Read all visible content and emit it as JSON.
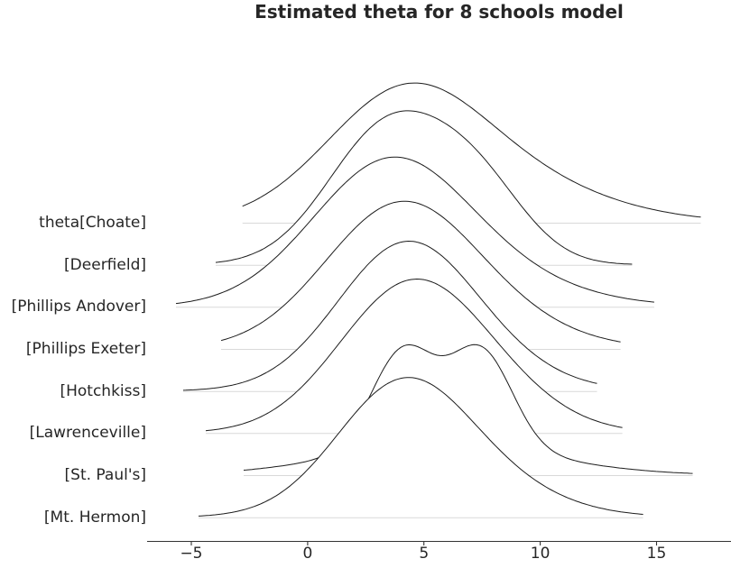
{
  "chart_data": {
    "type": "ridgeline",
    "title": "Estimated theta for 8 schools model",
    "xlabel": "",
    "ylabel": "",
    "grid": false,
    "legend": false,
    "x_range": [
      -6.9,
      18.2
    ],
    "x_ticks": [
      {
        "value": -5,
        "label": "−5"
      },
      {
        "value": 0,
        "label": "0"
      },
      {
        "value": 5,
        "label": "5"
      },
      {
        "value": 10,
        "label": "10"
      },
      {
        "value": 15,
        "label": "15"
      }
    ],
    "series": [
      {
        "label": "theta[Choate]",
        "range": [
          -2.8,
          16.9
        ],
        "rel_height": 3.32,
        "components": [
          {
            "mean": 4.0,
            "sd": 3.3,
            "weight": 0.58
          },
          {
            "mean": 7.2,
            "sd": 4.6,
            "weight": 0.42
          }
        ]
      },
      {
        "label": "[Deerfield]",
        "range": [
          -3.95,
          13.95
        ],
        "rel_height": 3.66,
        "components": [
          {
            "mean": 3.5,
            "sd": 2.6,
            "weight": 0.72
          },
          {
            "mean": 7.4,
            "sd": 2.1,
            "weight": 0.28
          }
        ]
      },
      {
        "label": "[Phillips Andover]",
        "range": [
          -5.66,
          14.9
        ],
        "rel_height": 3.56,
        "components": [
          {
            "mean": 3.4,
            "sd": 3.3,
            "weight": 0.75
          },
          {
            "mean": 6.5,
            "sd": 4.2,
            "weight": 0.25
          }
        ]
      },
      {
        "label": "[Phillips Exeter]",
        "range": [
          -3.72,
          13.45
        ],
        "rel_height": 3.51,
        "components": [
          {
            "mean": 3.8,
            "sd": 3.2,
            "weight": 0.8
          },
          {
            "mean": 7.0,
            "sd": 3.6,
            "weight": 0.2
          }
        ]
      },
      {
        "label": "[Hotchkiss]",
        "range": [
          -5.35,
          12.44
        ],
        "rel_height": 3.56,
        "components": [
          {
            "mean": 4.0,
            "sd": 2.9,
            "weight": 0.78
          },
          {
            "mean": 6.5,
            "sd": 3.2,
            "weight": 0.22
          }
        ]
      },
      {
        "label": "[Lawrenceville]",
        "range": [
          -4.38,
          13.53
        ],
        "rel_height": 3.66,
        "components": [
          {
            "mean": 4.1,
            "sd": 3.0,
            "weight": 0.75
          },
          {
            "mean": 7.2,
            "sd": 3.0,
            "weight": 0.25
          }
        ]
      },
      {
        "label": "[St. Paul's]",
        "range": [
          -2.75,
          16.55
        ],
        "rel_height": 3.1,
        "components": [
          {
            "mean": 4.1,
            "sd": 1.35,
            "weight": 0.33
          },
          {
            "mean": 7.45,
            "sd": 1.35,
            "weight": 0.33
          },
          {
            "mean": 5.8,
            "sd": 4.5,
            "weight": 0.34
          }
        ]
      },
      {
        "label": "[Mt. Hermon]",
        "range": [
          -4.69,
          14.42
        ],
        "rel_height": 3.32,
        "components": [
          {
            "mean": 3.9,
            "sd": 2.8,
            "weight": 0.7
          },
          {
            "mean": 6.6,
            "sd": 3.4,
            "weight": 0.3
          }
        ]
      }
    ]
  },
  "colors": {
    "background": "#ffffff",
    "curve": "#1c1c1c",
    "ridge_fill": "#ffffff",
    "baseline": "#d9d9d9",
    "axis": "#333333",
    "text": "#262626"
  }
}
